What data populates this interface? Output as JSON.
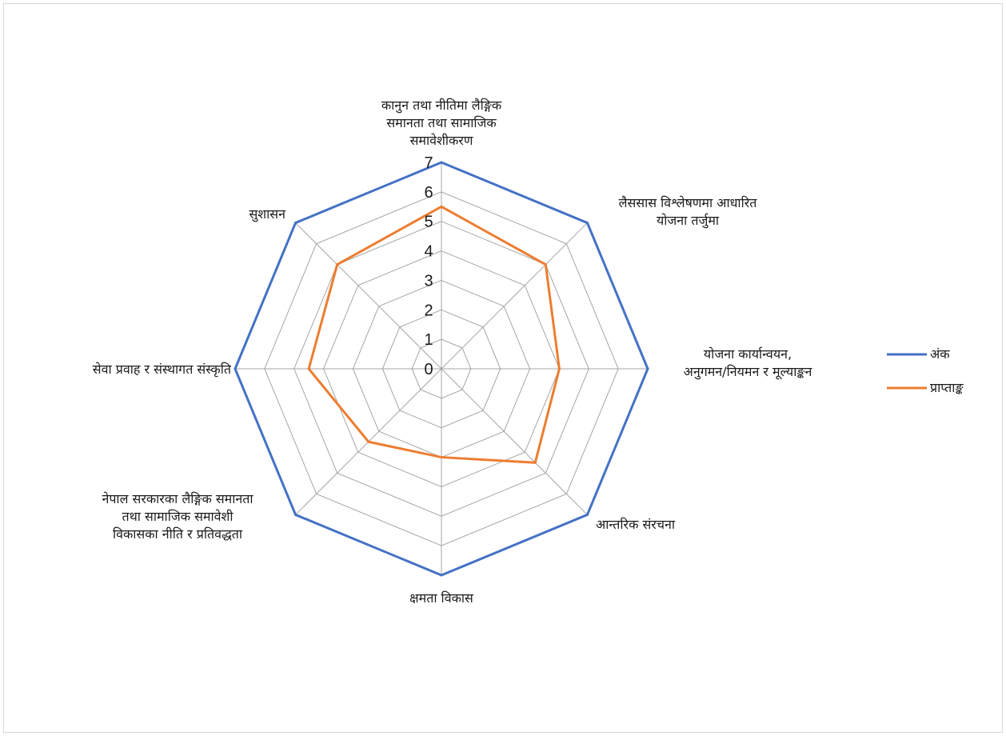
{
  "chart_data": {
    "type": "radar",
    "categories": [
      [
        "कानुन तथा नीतिमा लैङ्गिक",
        "समानता तथा सामाजिक",
        "समावेशीकरण"
      ],
      [
        "लैससास विश्लेषणमा आधारित",
        "योजना तर्जुमा"
      ],
      [
        "योजना कार्यान्वयन,",
        "अनुगमन/नियमन र मूल्याङ्कन"
      ],
      [
        "आन्तरिक संरचना"
      ],
      [
        "क्षमता विकास"
      ],
      [
        "नेपाल सरकारका लैङ्गिक समानता",
        "तथा सामाजिक समावेशी",
        "विकासका नीति र प्रतिवद्धता"
      ],
      [
        "सेवा प्रवाह र संस्थागत संस्कृति"
      ],
      [
        "सुशासन"
      ]
    ],
    "rlim": [
      0,
      7
    ],
    "ticks": [
      "0",
      "1",
      "2",
      "3",
      "4",
      "5",
      "6",
      "7"
    ],
    "grid": true,
    "legend_position": "right",
    "series": [
      {
        "name": "अंक",
        "color": "#4472c4",
        "values": [
          7,
          7,
          7,
          7,
          7,
          7,
          7,
          7
        ]
      },
      {
        "name": "प्राप्ताङ्क",
        "color": "#ed7d31",
        "values": [
          5.5,
          5,
          4,
          4.5,
          3,
          3.5,
          4.5,
          5
        ]
      }
    ]
  }
}
